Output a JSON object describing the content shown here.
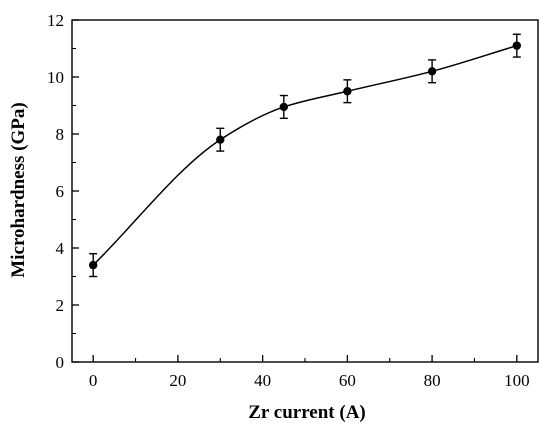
{
  "chart_data": {
    "type": "line",
    "xlabel": "Zr current (A)",
    "ylabel": "Microhardness (GPa)",
    "xlim": [
      -5,
      105
    ],
    "ylim": [
      0,
      12
    ],
    "x_ticks": [
      0,
      20,
      40,
      60,
      80,
      100
    ],
    "y_ticks": [
      0,
      2,
      4,
      6,
      8,
      10,
      12
    ],
    "x_tick_labels": [
      "0",
      "20",
      "40",
      "60",
      "80",
      "100"
    ],
    "y_tick_labels": [
      "0",
      "2",
      "4",
      "6",
      "8",
      "10",
      "12"
    ],
    "grid": false,
    "legend": "none",
    "line_style": "smooth curve with circular markers and error bars",
    "series": [
      {
        "x": [
          0,
          30,
          45,
          60,
          80,
          100
        ],
        "values": [
          3.4,
          7.8,
          8.95,
          9.5,
          10.2,
          11.1
        ],
        "error": [
          0.4,
          0.4,
          0.4,
          0.4,
          0.4,
          0.4
        ],
        "color": "#000000"
      }
    ]
  }
}
